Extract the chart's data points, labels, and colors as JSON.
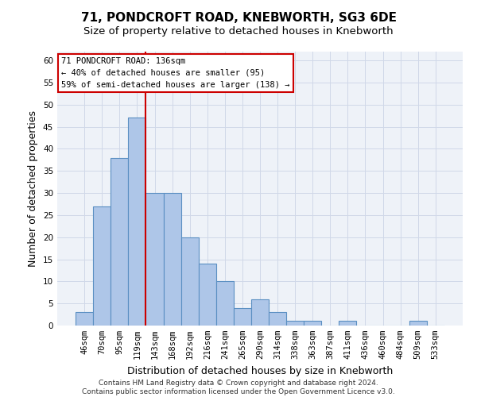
{
  "title": "71, PONDCROFT ROAD, KNEBWORTH, SG3 6DE",
  "subtitle": "Size of property relative to detached houses in Knebworth",
  "xlabel": "Distribution of detached houses by size in Knebworth",
  "ylabel": "Number of detached properties",
  "bar_labels": [
    "46sqm",
    "70sqm",
    "95sqm",
    "119sqm",
    "143sqm",
    "168sqm",
    "192sqm",
    "216sqm",
    "241sqm",
    "265sqm",
    "290sqm",
    "314sqm",
    "338sqm",
    "363sqm",
    "387sqm",
    "411sqm",
    "436sqm",
    "460sqm",
    "484sqm",
    "509sqm",
    "533sqm"
  ],
  "bar_values": [
    3,
    27,
    38,
    47,
    30,
    30,
    20,
    14,
    10,
    4,
    6,
    3,
    1,
    1,
    0,
    1,
    0,
    0,
    0,
    1,
    0
  ],
  "bar_color": "#aec6e8",
  "bar_edgecolor": "#5a8fc2",
  "bar_linewidth": 0.8,
  "vline_x_idx": 3.5,
  "vline_color": "#cc0000",
  "vline_linewidth": 1.5,
  "annotation_text": "71 PONDCROFT ROAD: 136sqm\n← 40% of detached houses are smaller (95)\n59% of semi-detached houses are larger (138) →",
  "annotation_box_color": "#ffffff",
  "annotation_box_edgecolor": "#cc0000",
  "ylim": [
    0,
    62
  ],
  "yticks": [
    0,
    5,
    10,
    15,
    20,
    25,
    30,
    35,
    40,
    45,
    50,
    55,
    60
  ],
  "grid_color": "#d0d8e8",
  "bg_color": "#eef2f8",
  "footer_line1": "Contains HM Land Registry data © Crown copyright and database right 2024.",
  "footer_line2": "Contains public sector information licensed under the Open Government Licence v3.0.",
  "title_fontsize": 11,
  "subtitle_fontsize": 9.5,
  "xlabel_fontsize": 9,
  "ylabel_fontsize": 9,
  "tick_fontsize": 7.5,
  "footer_fontsize": 6.5
}
